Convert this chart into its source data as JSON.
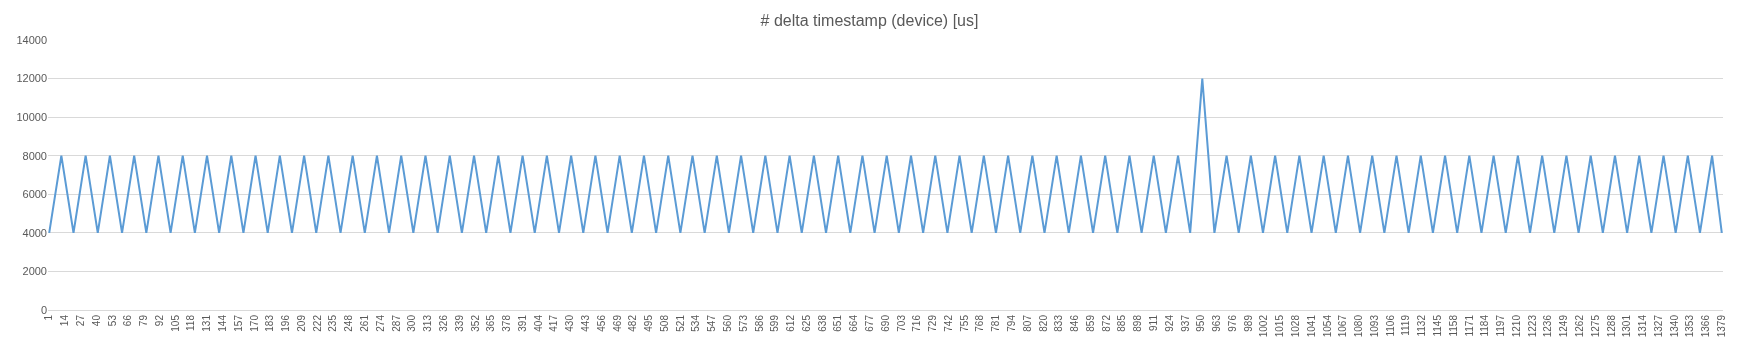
{
  "chart_data": {
    "type": "line",
    "title": "# delta timestamp (device) [us]",
    "x": [
      1,
      11,
      21,
      31,
      41,
      51,
      61,
      71,
      81,
      91,
      101,
      111,
      121,
      131,
      141,
      151,
      161,
      171,
      181,
      191,
      201,
      211,
      221,
      231,
      241,
      251,
      261,
      271,
      281,
      291,
      301,
      311,
      321,
      331,
      341,
      351,
      361,
      371,
      381,
      391,
      401,
      411,
      421,
      431,
      441,
      451,
      461,
      471,
      481,
      491,
      501,
      511,
      521,
      531,
      541,
      551,
      561,
      571,
      581,
      591,
      601,
      611,
      621,
      631,
      641,
      651,
      661,
      671,
      681,
      691,
      701,
      711,
      721,
      731,
      741,
      751,
      761,
      771,
      781,
      791,
      801,
      811,
      821,
      831,
      841,
      851,
      861,
      871,
      881,
      891,
      901,
      911,
      921,
      931,
      941,
      951,
      961,
      971,
      981,
      991,
      1001,
      1011,
      1021,
      1031,
      1041,
      1051,
      1061,
      1071,
      1081,
      1091,
      1101,
      1111,
      1121,
      1131,
      1141,
      1151,
      1161,
      1171,
      1181,
      1191,
      1201,
      1211,
      1221,
      1231,
      1241,
      1251,
      1261,
      1271,
      1281,
      1291,
      1301,
      1311,
      1321,
      1331,
      1341,
      1351,
      1361,
      1371,
      1379
    ],
    "series": [
      {
        "color": "#5b9bd5",
        "values": [
          4000,
          8000,
          4000,
          8000,
          4000,
          8000,
          4000,
          8000,
          4000,
          8000,
          4000,
          8000,
          4000,
          8000,
          4000,
          8000,
          4000,
          8000,
          4000,
          8000,
          4000,
          8000,
          4000,
          8000,
          4000,
          8000,
          4000,
          8000,
          4000,
          8000,
          4000,
          8000,
          4000,
          8000,
          4000,
          8000,
          4000,
          8000,
          4000,
          8000,
          4000,
          8000,
          4000,
          8000,
          4000,
          8000,
          4000,
          8000,
          4000,
          8000,
          4000,
          8000,
          4000,
          8000,
          4000,
          8000,
          4000,
          8000,
          4000,
          8000,
          4000,
          8000,
          4000,
          8000,
          4000,
          8000,
          4000,
          8000,
          4000,
          8000,
          4000,
          8000,
          4000,
          8000,
          4000,
          8000,
          4000,
          8000,
          4000,
          8000,
          4000,
          8000,
          4000,
          8000,
          4000,
          8000,
          4000,
          8000,
          4000,
          8000,
          4000,
          8000,
          4000,
          8000,
          4000,
          12000,
          4000,
          8000,
          4000,
          8000,
          4000,
          8000,
          4000,
          8000,
          4000,
          8000,
          4000,
          8000,
          4000,
          8000,
          4000,
          8000,
          4000,
          8000,
          4000,
          8000,
          4000,
          8000,
          4000,
          8000,
          4000,
          8000,
          4000,
          8000,
          4000,
          8000,
          4000,
          8000,
          4000,
          8000,
          4000,
          8000,
          4000,
          8000,
          4000,
          8000,
          4000,
          8000,
          4000
        ]
      }
    ],
    "xlim": [
      0,
      1380
    ],
    "xticks": [
      1,
      14,
      27,
      40,
      53,
      66,
      79,
      92,
      105,
      118,
      131,
      144,
      157,
      170,
      183,
      196,
      209,
      222,
      235,
      248,
      261,
      274,
      287,
      300,
      313,
      326,
      339,
      352,
      365,
      378,
      391,
      404,
      417,
      430,
      443,
      456,
      469,
      482,
      495,
      508,
      521,
      534,
      547,
      560,
      573,
      586,
      599,
      612,
      625,
      638,
      651,
      664,
      677,
      690,
      703,
      716,
      729,
      742,
      755,
      768,
      781,
      794,
      807,
      820,
      833,
      846,
      859,
      872,
      885,
      898,
      911,
      924,
      937,
      950,
      963,
      976,
      989,
      1002,
      1015,
      1028,
      1041,
      1054,
      1067,
      1080,
      1093,
      1106,
      1119,
      1132,
      1145,
      1158,
      1171,
      1184,
      1197,
      1210,
      1223,
      1236,
      1249,
      1262,
      1275,
      1288,
      1301,
      1314,
      1327,
      1340,
      1353,
      1366,
      1379
    ],
    "ylim": [
      0,
      14000
    ],
    "yticks": [
      0,
      2000,
      4000,
      6000,
      8000,
      10000,
      12000,
      14000
    ],
    "grid": "y",
    "marker": "none",
    "line_style": "solid"
  }
}
